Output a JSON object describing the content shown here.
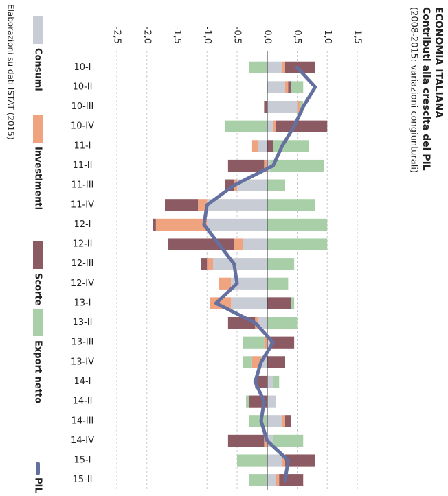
{
  "chart_data": {
    "type": "bar",
    "stacked": true,
    "title": "ECONOMIA ITALIANA",
    "subtitle": "Contributi alla crescita del PIL",
    "note": "(2008-2015: variazioni congiunturali)",
    "source": "Elaborazioni su dati ISTAT (2015)",
    "categories": [
      "10-I",
      "10-II",
      "10-III",
      "10-IV",
      "11-I",
      "11-II",
      "11-III",
      "11-IV",
      "12-I",
      "12-II",
      "12-III",
      "12-IV",
      "13-I",
      "13-II",
      "13-III",
      "13-IV",
      "14-I",
      "14-II",
      "14-III",
      "14-IV",
      "15-I",
      "15-II"
    ],
    "series": [
      {
        "name": "Consumi",
        "color": "#c8ccd5",
        "values": [
          0.25,
          0.3,
          0.5,
          0.1,
          -0.15,
          0.05,
          -0.5,
          -1.0,
          -1.0,
          -0.4,
          -0.9,
          -0.6,
          -0.6,
          -0.15,
          0.05,
          -0.1,
          0.1,
          0.15,
          0.25,
          0.1,
          0.25,
          0.15
        ]
      },
      {
        "name": "Investimenti",
        "color": "#f0a37f",
        "values": [
          0.05,
          0.05,
          0.05,
          0.05,
          -0.1,
          -0.05,
          -0.05,
          -0.15,
          -0.85,
          -0.15,
          -0.1,
          -0.2,
          -0.35,
          -0.05,
          -0.05,
          -0.15,
          0,
          0,
          0.05,
          -0.05,
          0.05,
          0.05
        ]
      },
      {
        "name": "Scorte",
        "color": "#8c5a62",
        "values": [
          0.5,
          0.05,
          -0.05,
          0.85,
          0.1,
          -0.6,
          -0.15,
          -0.55,
          -0.05,
          -1.1,
          -0.1,
          0,
          0.4,
          -0.45,
          0.4,
          0.3,
          -0.2,
          -0.3,
          0.1,
          -0.6,
          0.5,
          0.4
        ]
      },
      {
        "name": "Export netto",
        "color": "#a8cfa7",
        "values": [
          -0.3,
          0.2,
          0.05,
          -0.7,
          0.6,
          0.9,
          0.3,
          0.8,
          1.0,
          1.0,
          0.45,
          0.35,
          0.05,
          0.5,
          -0.35,
          -0.15,
          0.1,
          -0.05,
          -0.3,
          0.5,
          -0.5,
          -0.3
        ]
      },
      {
        "name": "PIL",
        "type": "line",
        "color": "#6470a0",
        "values": [
          0.5,
          0.8,
          0.6,
          0.45,
          0.25,
          0.1,
          -0.55,
          -1.0,
          -1.05,
          -0.8,
          -0.55,
          -0.5,
          -0.85,
          -0.2,
          0.1,
          -0.1,
          -0.2,
          -0.05,
          -0.1,
          0.0,
          0.35,
          0.3
        ]
      }
    ],
    "ylim": [
      -2.5,
      1.5
    ],
    "yticks": [
      {
        "value": -2.5,
        "label": "-2,5"
      },
      {
        "value": -2,
        "label": "-2,0"
      },
      {
        "value": -1.5,
        "label": "-1,5"
      },
      {
        "value": -1,
        "label": "-1,0"
      },
      {
        "value": -0.5,
        "label": "-0,5"
      },
      {
        "value": 0,
        "label": "0,0"
      },
      {
        "value": 0.5,
        "label": "0,5"
      },
      {
        "value": 1,
        "label": "1,0"
      },
      {
        "value": 1.5,
        "label": "1,5"
      }
    ],
    "grid": true
  }
}
